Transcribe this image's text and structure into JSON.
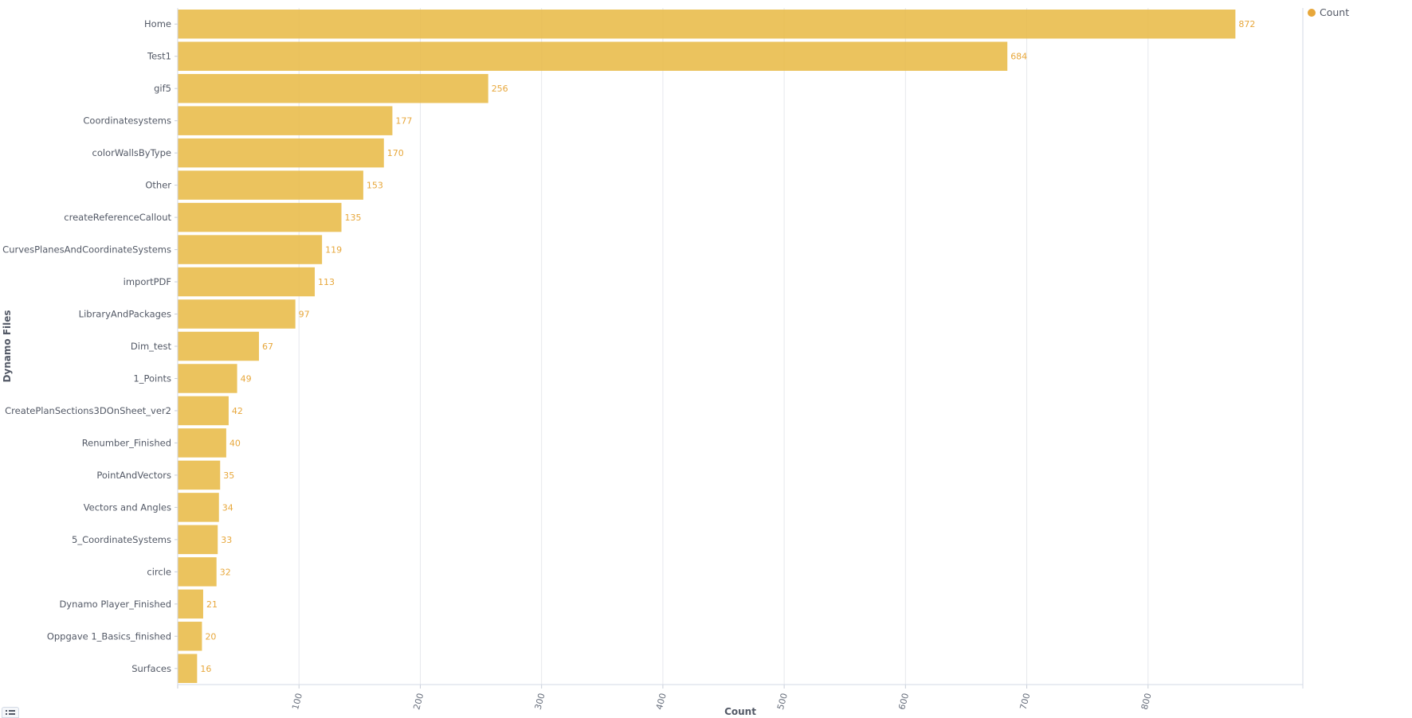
{
  "chart_data": {
    "type": "bar",
    "orientation": "horizontal",
    "title": "",
    "xlabel": "Count",
    "ylabel": "Dynamo Files",
    "xlim": [
      0,
      900
    ],
    "x_ticks": [
      100,
      200,
      300,
      400,
      500,
      600,
      700,
      800
    ],
    "grid": true,
    "legend": {
      "position": "top-right",
      "entries": [
        {
          "name": "Count",
          "color": "#e7a73b"
        }
      ]
    },
    "bar_color": "#e8b842",
    "value_label_color": "#e7a73b",
    "categories": [
      "Home",
      "Test1",
      "gif5",
      "Coordinatesystems",
      "colorWallsByType",
      "Other",
      "createReferenceCallout",
      "CurvesPlanesAndCoordinateSystems",
      "importPDF",
      "LibraryAndPackages",
      "Dim_test",
      "1_Points",
      "CreatePlanSections3DOnSheet_ver2",
      "Renumber_Finished",
      "PointAndVectors",
      "Vectors and Angles",
      "5_CoordinateSystems",
      "circle",
      "Dynamo Player_Finished",
      "Oppgave 1_Basics_finished",
      "Surfaces"
    ],
    "series": [
      {
        "name": "Count",
        "values": [
          872,
          684,
          256,
          177,
          170,
          153,
          135,
          119,
          113,
          97,
          67,
          49,
          42,
          40,
          35,
          34,
          33,
          32,
          21,
          20,
          16
        ]
      }
    ]
  }
}
